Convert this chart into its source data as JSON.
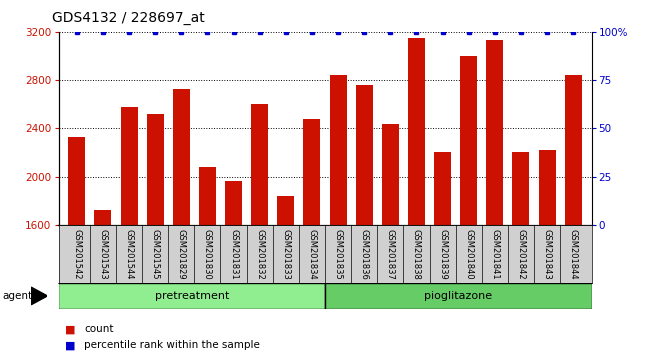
{
  "title": "GDS4132 / 228697_at",
  "categories": [
    "GSM201542",
    "GSM201543",
    "GSM201544",
    "GSM201545",
    "GSM201829",
    "GSM201830",
    "GSM201831",
    "GSM201832",
    "GSM201833",
    "GSM201834",
    "GSM201835",
    "GSM201836",
    "GSM201837",
    "GSM201838",
    "GSM201839",
    "GSM201840",
    "GSM201841",
    "GSM201842",
    "GSM201843",
    "GSM201844"
  ],
  "bar_values": [
    2330,
    1720,
    2580,
    2520,
    2730,
    2080,
    1960,
    2600,
    1840,
    2480,
    2840,
    2760,
    2440,
    3150,
    2200,
    3000,
    3130,
    2200,
    2220,
    2840
  ],
  "percentile_values": [
    100,
    100,
    100,
    100,
    100,
    100,
    100,
    100,
    100,
    100,
    100,
    100,
    100,
    100,
    100,
    100,
    100,
    100,
    100,
    100
  ],
  "bar_color": "#cc1100",
  "percentile_color": "#0000cc",
  "pretreatment_label": "pretreatment",
  "pioglitazone_label": "pioglitazone",
  "agent_label": "agent",
  "ylim_left": [
    1600,
    3200
  ],
  "ylim_right": [
    0,
    100
  ],
  "yticks_left": [
    1600,
    2000,
    2400,
    2800,
    3200
  ],
  "yticks_right": [
    0,
    25,
    50,
    75,
    100
  ],
  "yticklabels_right": [
    "0",
    "25",
    "50",
    "75",
    "100%"
  ],
  "plot_bg_color": "#ffffff",
  "tick_label_bg_color": "#d0d0d0",
  "grid_color": "#000000",
  "title_fontsize": 10,
  "axis_label_color_left": "#cc1100",
  "axis_label_color_right": "#0000cc",
  "legend_count_label": "count",
  "legend_percentile_label": "percentile rank within the sample",
  "group_bg_pretreatment": "#90EE90",
  "group_bg_pioglitazone": "#66CC66",
  "n_pretreatment": 10,
  "n_pioglitazone": 10
}
